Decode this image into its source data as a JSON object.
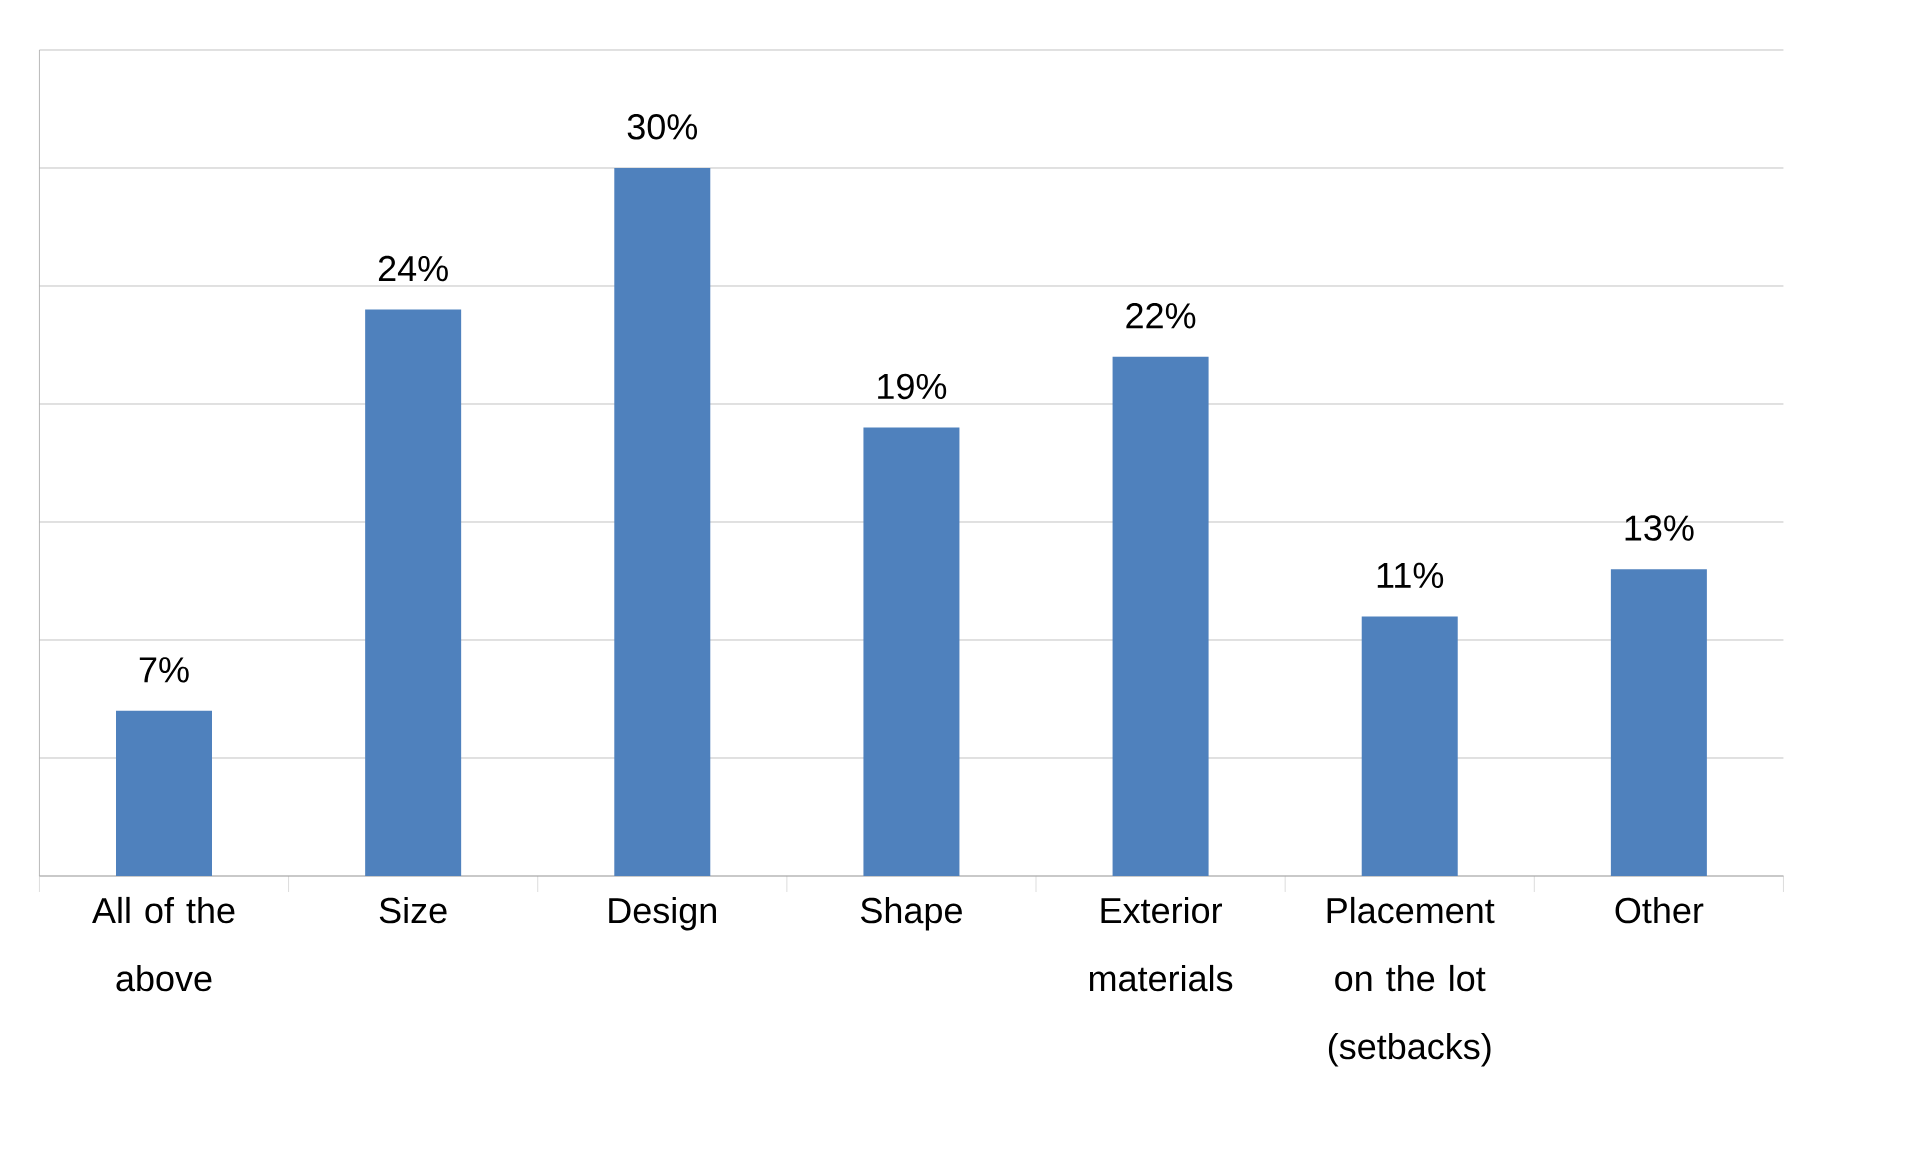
{
  "chart_data": {
    "type": "bar",
    "categories": [
      "All of the above",
      "Size",
      "Design",
      "Shape",
      "Exterior materials",
      "Placement on the lot (setbacks)",
      "Other"
    ],
    "values": [
      7,
      24,
      30,
      19,
      22,
      11,
      13
    ],
    "value_labels": [
      "7%",
      "24%",
      "30%",
      "19%",
      "22%",
      "11%",
      "13%"
    ],
    "color": "#4f81bd",
    "ylim": [
      0,
      35
    ],
    "yticks": [
      {
        "value": 0,
        "label": null
      },
      {
        "value": 5,
        "label": null
      },
      {
        "value": 10,
        "label": null
      },
      {
        "value": 15,
        "label": null
      },
      {
        "value": 20,
        "label": null
      },
      {
        "value": 25,
        "label": null
      },
      {
        "value": 30,
        "label": null
      },
      {
        "value": 35,
        "label": null
      }
    ],
    "grid": "y",
    "tick_labels": "x"
  }
}
